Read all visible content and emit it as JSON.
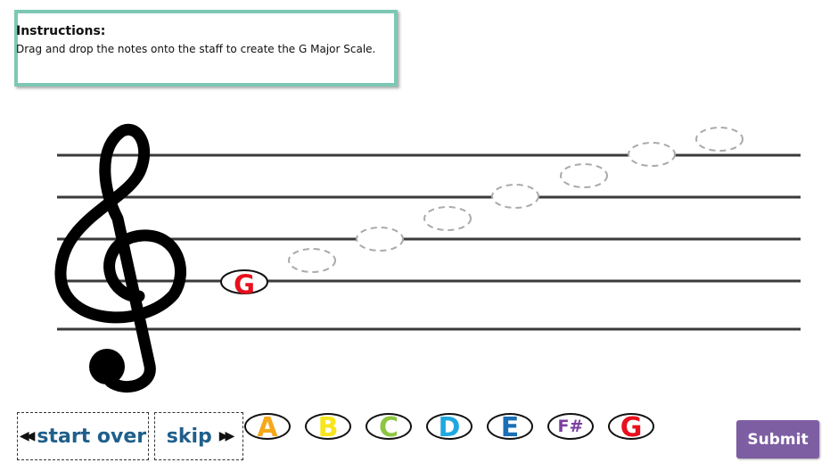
{
  "instructions": {
    "title": "Instructions:",
    "text": "Drag and drop the notes onto the staff to create the G Major Scale."
  },
  "staff": {
    "clef_icon": "treble-clef-icon",
    "placed_note": {
      "label": "G",
      "color": "#e8101c"
    },
    "empty_slots": 7
  },
  "controls": {
    "start_over_label": "start over",
    "skip_label": "skip",
    "start_over_icon": "rewind-icon",
    "skip_icon": "fast-forward-icon",
    "submit_label": "Submit"
  },
  "note_tokens": [
    {
      "label": "A",
      "color": "#f5a81c"
    },
    {
      "label": "B",
      "color": "#f7e51d"
    },
    {
      "label": "C",
      "color": "#8dc63f"
    },
    {
      "label": "D",
      "color": "#1fa8e0"
    },
    {
      "label": "E",
      "color": "#1a6fb5"
    },
    {
      "label": "F#",
      "color": "#7b3fa0"
    },
    {
      "label": "G",
      "color": "#e8101c"
    }
  ],
  "colors": {
    "instructions_border": "#7cc8b5",
    "nav_text": "#1f5f8b",
    "submit_bg": "#7e5ea3"
  }
}
